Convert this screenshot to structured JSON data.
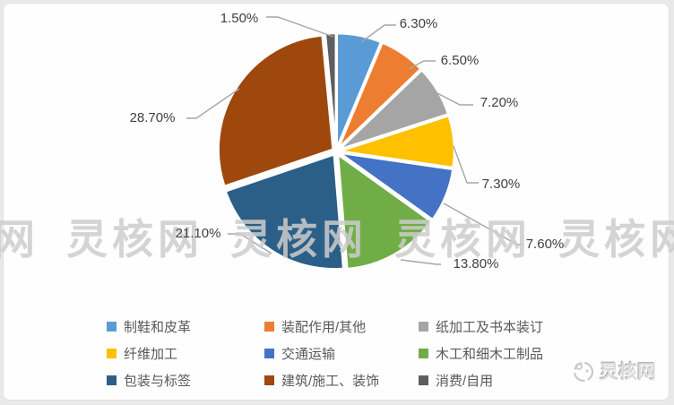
{
  "chart_data": {
    "type": "pie",
    "title": "",
    "categories": [
      "制鞋和皮革",
      "装配作用/其他",
      "纸加工及书本装订",
      "纤维加工",
      "交通运输",
      "木工和细木工制品",
      "包装与标签",
      "建筑/施工、装饰",
      "消费/自用"
    ],
    "values": [
      6.3,
      6.5,
      7.2,
      7.3,
      7.6,
      13.8,
      21.1,
      28.7,
      1.5
    ],
    "labels": [
      "6.30%",
      "6.50%",
      "7.20%",
      "7.30%",
      "7.60%",
      "13.80%",
      "21.10%",
      "28.70%",
      "1.50%"
    ],
    "colors": [
      "#5B9BD5",
      "#ED7D31",
      "#A5A5A5",
      "#FFC000",
      "#4472C4",
      "#70AD47",
      "#2B5F87",
      "#9E480E",
      "#5E5E5E"
    ],
    "start_angle": 0,
    "direction": "clockwise",
    "legend_position": "bottom",
    "leader_line_color": "#a6a6a6",
    "slice_border_color": "#ffffff"
  },
  "watermark": {
    "text": "灵核网"
  },
  "logo": {
    "text": "灵核网"
  }
}
